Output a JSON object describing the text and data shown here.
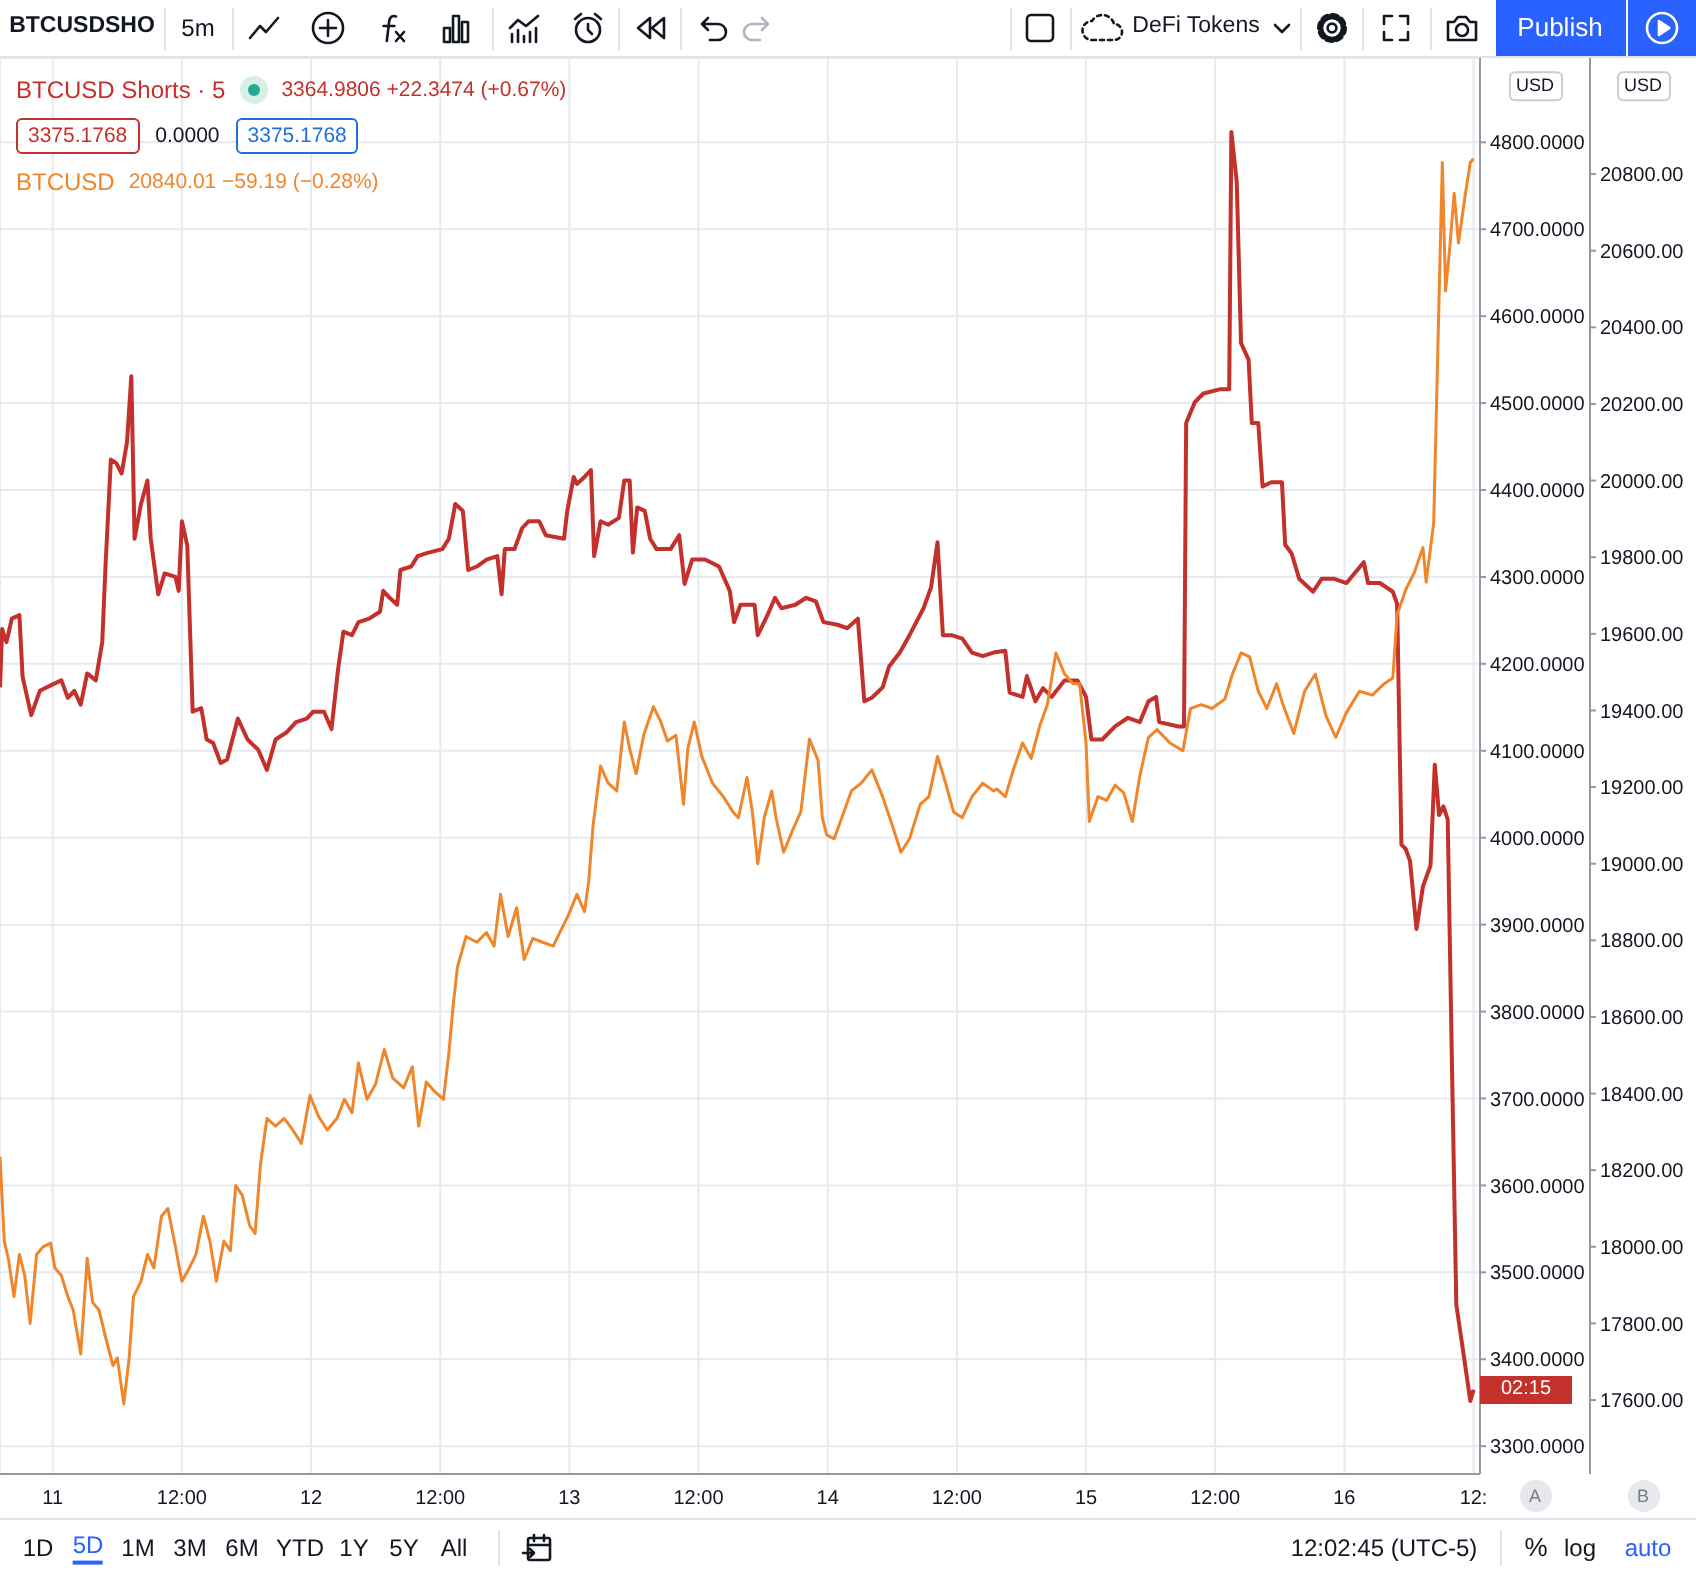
{
  "chart_data": {
    "type": "line",
    "xlim": [
      "2020-12-10T19:06",
      "2020-12-16T12:36"
    ],
    "xticks": [
      {
        "value": "2020-12-11T00:00",
        "label": "11"
      },
      {
        "value": "2020-12-11T12:00",
        "label": "12:00"
      },
      {
        "value": "2020-12-12T00:00",
        "label": "12"
      },
      {
        "value": "2020-12-12T12:00",
        "label": "12:00"
      },
      {
        "value": "2020-12-13T00:00",
        "label": "13"
      },
      {
        "value": "2020-12-13T12:00",
        "label": "12:00"
      },
      {
        "value": "2020-12-14T00:00",
        "label": "14"
      },
      {
        "value": "2020-12-14T12:00",
        "label": "12:00"
      },
      {
        "value": "2020-12-15T00:00",
        "label": "15"
      },
      {
        "value": "2020-12-15T12:00",
        "label": "12:00"
      },
      {
        "value": "2020-12-16T00:00",
        "label": "16"
      },
      {
        "value": "2020-12-16T12:00",
        "label": "12:"
      }
    ],
    "ylim": [
      3268,
      4897
    ],
    "yticks": [
      {
        "value": 3300,
        "label": "3300.0000"
      },
      {
        "value": 3400,
        "label": "3400.0000"
      },
      {
        "value": 3500,
        "label": "3500.0000"
      },
      {
        "value": 3600,
        "label": "3600.0000"
      },
      {
        "value": 3700,
        "label": "3700.0000"
      },
      {
        "value": 3800,
        "label": "3800.0000"
      },
      {
        "value": 3900,
        "label": "3900.0000"
      },
      {
        "value": 4000,
        "label": "4000.0000"
      },
      {
        "value": 4100,
        "label": "4100.0000"
      },
      {
        "value": 4200,
        "label": "4200.0000"
      },
      {
        "value": 4300,
        "label": "4300.0000"
      },
      {
        "value": 4400,
        "label": "4400.0000"
      },
      {
        "value": 4500,
        "label": "4500.0000"
      },
      {
        "value": 4600,
        "label": "4600.0000"
      },
      {
        "value": 4700,
        "label": "4700.0000"
      },
      {
        "value": 4800,
        "label": "4800.0000"
      }
    ],
    "y2lim": [
      17407,
      21103
    ],
    "y2ticks": [
      {
        "value": 17600,
        "label": "17600.00"
      },
      {
        "value": 17800,
        "label": "17800.00"
      },
      {
        "value": 18000,
        "label": "18000.00"
      },
      {
        "value": 18200,
        "label": "18200.00"
      },
      {
        "value": 18400,
        "label": "18400.00"
      },
      {
        "value": 18600,
        "label": "18600.00"
      },
      {
        "value": 18800,
        "label": "18800.00"
      },
      {
        "value": 19000,
        "label": "19000.00"
      },
      {
        "value": 19200,
        "label": "19200.00"
      },
      {
        "value": 19400,
        "label": "19400.00"
      },
      {
        "value": 19600,
        "label": "19600.00"
      },
      {
        "value": 19800,
        "label": "19800.00"
      },
      {
        "value": 20000,
        "label": "20000.00"
      },
      {
        "value": 20200,
        "label": "20200.00"
      },
      {
        "value": 20400,
        "label": "20400.00"
      },
      {
        "value": 20600,
        "label": "20600.00"
      },
      {
        "value": 20800,
        "label": "20800.00"
      }
    ],
    "grid": true,
    "legend": "top left",
    "series": [
      {
        "name": "BTCUSD Shorts · 5",
        "color": "#c4302b",
        "x": [
          "2020-12-10T19:06",
          "2020-12-10T19:18",
          "2020-12-10T19:42",
          "2020-12-10T20:12",
          "2020-12-10T20:54",
          "2020-12-10T21:12",
          "2020-12-10T22:00",
          "2020-12-10T22:48",
          "2020-12-11T00:06",
          "2020-12-11T00:48",
          "2020-12-11T01:24",
          "2020-12-11T02:00",
          "2020-12-11T02:36",
          "2020-12-11T03:12",
          "2020-12-11T04:00",
          "2020-12-11T04:36",
          "2020-12-11T04:54",
          "2020-12-11T05:24",
          "2020-12-11T05:54",
          "2020-12-11T06:24",
          "2020-12-11T06:54",
          "2020-12-11T07:18",
          "2020-12-11T07:36",
          "2020-12-11T08:12",
          "2020-12-11T08:48",
          "2020-12-11T09:06",
          "2020-12-11T09:48",
          "2020-12-11T10:24",
          "2020-12-11T11:24",
          "2020-12-11T11:42",
          "2020-12-11T12:00",
          "2020-12-11T12:30",
          "2020-12-11T13:00",
          "2020-12-11T13:48",
          "2020-12-11T14:18",
          "2020-12-11T14:54",
          "2020-12-11T15:36",
          "2020-12-11T16:12",
          "2020-12-11T17:12",
          "2020-12-11T18:06",
          "2020-12-11T19:06",
          "2020-12-11T19:54",
          "2020-12-11T20:42",
          "2020-12-11T21:42",
          "2020-12-11T22:36",
          "2020-12-11T23:36",
          "2020-12-12T00:12",
          "2020-12-12T01:12",
          "2020-12-12T01:54",
          "2020-12-12T02:30",
          "2020-12-12T03:00",
          "2020-12-12T03:48",
          "2020-12-12T04:24",
          "2020-12-12T05:24",
          "2020-12-12T06:24",
          "2020-12-12T06:42",
          "2020-12-12T07:18",
          "2020-12-12T08:00",
          "2020-12-12T08:18",
          "2020-12-12T09:18",
          "2020-12-12T09:54",
          "2020-12-12T10:54",
          "2020-12-12T12:12",
          "2020-12-12T12:48",
          "2020-12-12T13:24",
          "2020-12-12T14:06",
          "2020-12-12T14:36",
          "2020-12-12T15:24",
          "2020-12-12T16:18",
          "2020-12-12T17:18",
          "2020-12-12T17:42",
          "2020-12-12T18:00",
          "2020-12-12T18:54",
          "2020-12-12T19:36",
          "2020-12-12T20:12",
          "2020-12-12T21:12",
          "2020-12-12T21:48",
          "2020-12-12T23:30",
          "2020-12-12T23:48",
          "2020-12-13T00:24",
          "2020-12-13T00:42",
          "2020-12-13T01:24",
          "2020-12-13T02:00",
          "2020-12-13T02:18",
          "2020-12-13T02:54",
          "2020-12-13T03:36",
          "2020-12-13T04:36",
          "2020-12-13T05:06",
          "2020-12-13T05:36",
          "2020-12-13T05:54",
          "2020-12-13T06:18",
          "2020-12-13T07:00",
          "2020-12-13T07:30",
          "2020-12-13T08:06",
          "2020-12-13T09:24",
          "2020-12-13T10:12",
          "2020-12-13T10:42",
          "2020-12-13T11:24",
          "2020-12-13T12:36",
          "2020-12-13T13:54",
          "2020-12-13T14:54",
          "2020-12-13T15:18",
          "2020-12-13T15:54",
          "2020-12-13T17:12",
          "2020-12-13T17:30",
          "2020-12-13T18:24",
          "2020-12-13T19:06",
          "2020-12-13T19:42",
          "2020-12-13T21:00",
          "2020-12-13T22:00",
          "2020-12-13T22:54",
          "2020-12-13T23:36",
          "2020-12-14T00:54",
          "2020-12-14T01:48",
          "2020-12-14T02:48",
          "2020-12-14T03:24",
          "2020-12-14T04:06",
          "2020-12-14T05:06",
          "2020-12-14T05:42",
          "2020-12-14T06:42",
          "2020-12-14T07:36",
          "2020-12-14T08:54",
          "2020-12-14T09:36",
          "2020-12-14T10:12",
          "2020-12-14T10:42",
          "2020-12-14T11:30",
          "2020-12-14T12:30",
          "2020-12-14T13:24",
          "2020-12-14T14:24",
          "2020-12-14T15:24",
          "2020-12-14T16:30",
          "2020-12-14T16:54",
          "2020-12-14T18:06",
          "2020-12-14T18:30",
          "2020-12-14T19:18",
          "2020-12-14T20:00",
          "2020-12-14T20:48",
          "2020-12-14T22:00",
          "2020-12-14T23:12",
          "2020-12-15T00:00",
          "2020-12-15T00:30",
          "2020-12-15T01:30",
          "2020-12-15T02:42",
          "2020-12-15T03:54",
          "2020-12-15T05:00",
          "2020-12-15T05:48",
          "2020-12-15T06:30",
          "2020-12-15T06:48",
          "2020-12-15T08:36",
          "2020-12-15T09:06",
          "2020-12-15T09:18",
          "2020-12-15T10:06",
          "2020-12-15T10:54",
          "2020-12-15T12:30",
          "2020-12-15T13:18",
          "2020-12-15T13:30",
          "2020-12-15T14:00",
          "2020-12-15T14:24",
          "2020-12-15T15:06",
          "2020-12-15T15:24",
          "2020-12-15T16:00",
          "2020-12-15T16:24",
          "2020-12-15T17:12",
          "2020-12-15T18:12",
          "2020-12-15T18:30",
          "2020-12-15T19:06",
          "2020-12-15T19:48",
          "2020-12-15T21:06",
          "2020-12-15T21:54",
          "2020-12-15T23:00",
          "2020-12-16T00:12",
          "2020-12-16T01:48",
          "2020-12-16T02:12",
          "2020-12-16T03:18",
          "2020-12-16T04:30",
          "2020-12-16T04:54",
          "2020-12-16T05:18",
          "2020-12-16T05:42",
          "2020-12-16T06:06",
          "2020-12-16T06:42",
          "2020-12-16T07:18",
          "2020-12-16T08:00",
          "2020-12-16T08:24",
          "2020-12-16T08:48",
          "2020-12-16T09:12",
          "2020-12-16T09:36",
          "2020-12-16T10:00",
          "2020-12-16T10:24",
          "2020-12-16T11:12",
          "2020-12-16T11:42",
          "2020-12-16T12:00"
        ],
        "values": [
          4173,
          4240,
          4225,
          4252,
          4256,
          4185,
          4141,
          4169,
          4177,
          4181,
          4161,
          4169,
          4153,
          4189,
          4181,
          4225,
          4312,
          4435,
          4431,
          4419,
          4455,
          4531,
          4344,
          4384,
          4411,
          4344,
          4280,
          4304,
          4300,
          4284,
          4364,
          4336,
          4145,
          4149,
          4113,
          4109,
          4086,
          4090,
          4137,
          4113,
          4101,
          4078,
          4113,
          4121,
          4133,
          4137,
          4145,
          4145,
          4125,
          4193,
          4237,
          4233,
          4248,
          4252,
          4260,
          4284,
          4276,
          4268,
          4308,
          4312,
          4324,
          4328,
          4332,
          4344,
          4384,
          4376,
          4308,
          4312,
          4320,
          4324,
          4280,
          4332,
          4332,
          4356,
          4364,
          4364,
          4348,
          4344,
          4376,
          4415,
          4407,
          4415,
          4423,
          4324,
          4364,
          4360,
          4368,
          4411,
          4411,
          4328,
          4380,
          4376,
          4344,
          4332,
          4332,
          4348,
          4292,
          4320,
          4320,
          4312,
          4284,
          4248,
          4268,
          4268,
          4233,
          4256,
          4276,
          4264,
          4268,
          4276,
          4272,
          4248,
          4245,
          4241,
          4252,
          4157,
          4161,
          4173,
          4197,
          4213,
          4233,
          4264,
          4288,
          4340,
          4233,
          4233,
          4229,
          4213,
          4209,
          4213,
          4215,
          4167,
          4162,
          4186,
          4157,
          4172,
          4162,
          4181,
          4181,
          4162,
          4113,
          4113,
          4128,
          4138,
          4133,
          4157,
          4162,
          4133,
          4128,
          4128,
          4477,
          4501,
          4511,
          4516,
          4516,
          4812,
          4754,
          4569,
          4550,
          4477,
          4477,
          4404,
          4409,
          4409,
          4337,
          4327,
          4298,
          4283,
          4298,
          4298,
          4293,
          4317,
          4293,
          4293,
          4283,
          4269,
          3992,
          3987,
          3973,
          3895,
          3944,
          3968,
          4084,
          4026,
          4036,
          4021,
          3735,
          3463,
          3395,
          3352,
          3365
        ]
      },
      {
        "name": "BTCUSD",
        "color": "#f0862c",
        "axis": "y2",
        "x": [
          "2020-12-10T19:06",
          "2020-12-10T19:30",
          "2020-12-10T19:54",
          "2020-12-10T20:24",
          "2020-12-10T20:54",
          "2020-12-10T21:24",
          "2020-12-10T21:54",
          "2020-12-10T22:30",
          "2020-12-10T23:06",
          "2020-12-10T23:48",
          "2020-12-11T00:12",
          "2020-12-11T00:48",
          "2020-12-11T01:24",
          "2020-12-11T01:54",
          "2020-12-11T02:36",
          "2020-12-11T03:12",
          "2020-12-11T03:42",
          "2020-12-11T04:18",
          "2020-12-11T04:54",
          "2020-12-11T05:36",
          "2020-12-11T06:00",
          "2020-12-11T06:36",
          "2020-12-11T07:06",
          "2020-12-11T07:30",
          "2020-12-11T08:12",
          "2020-12-11T08:48",
          "2020-12-11T09:24",
          "2020-12-11T10:06",
          "2020-12-11T10:42",
          "2020-12-11T11:24",
          "2020-12-11T12:00",
          "2020-12-11T12:42",
          "2020-12-11T13:18",
          "2020-12-11T14:00",
          "2020-12-11T14:36",
          "2020-12-11T15:12",
          "2020-12-11T15:54",
          "2020-12-11T16:30",
          "2020-12-11T17:00",
          "2020-12-11T17:36",
          "2020-12-11T18:18",
          "2020-12-11T18:48",
          "2020-12-11T19:18",
          "2020-12-11T19:54",
          "2020-12-11T20:42",
          "2020-12-11T21:30",
          "2020-12-11T22:18",
          "2020-12-11T23:06",
          "2020-12-11T23:54",
          "2020-12-12T00:42",
          "2020-12-12T01:30",
          "2020-12-12T02:24",
          "2020-12-12T03:06",
          "2020-12-12T03:48",
          "2020-12-12T04:24",
          "2020-12-12T05:12",
          "2020-12-12T06:00",
          "2020-12-12T06:48",
          "2020-12-12T07:36",
          "2020-12-12T08:36",
          "2020-12-12T09:24",
          "2020-12-12T10:00",
          "2020-12-12T10:42",
          "2020-12-12T11:30",
          "2020-12-12T12:18",
          "2020-12-12T12:48",
          "2020-12-12T13:12",
          "2020-12-12T13:36",
          "2020-12-12T14:24",
          "2020-12-12T15:24",
          "2020-12-12T16:18",
          "2020-12-12T17:00",
          "2020-12-12T17:36",
          "2020-12-12T18:18",
          "2020-12-12T19:06",
          "2020-12-12T19:48",
          "2020-12-12T20:36",
          "2020-12-12T21:30",
          "2020-12-12T22:30",
          "2020-12-12T23:06",
          "2020-12-12T23:54",
          "2020-12-13T00:42",
          "2020-12-13T01:24",
          "2020-12-13T01:48",
          "2020-12-13T02:12",
          "2020-12-13T02:54",
          "2020-12-13T03:36",
          "2020-12-13T04:24",
          "2020-12-13T05:06",
          "2020-12-13T05:36",
          "2020-12-13T06:12",
          "2020-12-13T06:54",
          "2020-12-13T07:48",
          "2020-12-13T08:30",
          "2020-12-13T09:06",
          "2020-12-13T09:54",
          "2020-12-13T10:36",
          "2020-12-13T11:00",
          "2020-12-13T11:36",
          "2020-12-13T12:18",
          "2020-12-13T13:18",
          "2020-12-13T14:18",
          "2020-12-13T15:12",
          "2020-12-13T15:42",
          "2020-12-13T16:30",
          "2020-12-13T17:00",
          "2020-12-13T17:30",
          "2020-12-13T18:06",
          "2020-12-13T18:48",
          "2020-12-13T19:12",
          "2020-12-13T19:54",
          "2020-12-13T20:42",
          "2020-12-13T21:30",
          "2020-12-13T22:18",
          "2020-12-13T23:06",
          "2020-12-13T23:30",
          "2020-12-13T23:54",
          "2020-12-14T00:36",
          "2020-12-14T01:30",
          "2020-12-14T02:12",
          "2020-12-14T03:06",
          "2020-12-14T04:06",
          "2020-12-14T05:06",
          "2020-12-14T06:00",
          "2020-12-14T06:48",
          "2020-12-14T07:36",
          "2020-12-14T08:36",
          "2020-12-14T09:24",
          "2020-12-14T10:12",
          "2020-12-14T10:48",
          "2020-12-14T11:42",
          "2020-12-14T12:30",
          "2020-12-14T13:24",
          "2020-12-14T14:24",
          "2020-12-14T15:24",
          "2020-12-14T15:42",
          "2020-12-14T16:30",
          "2020-12-14T17:18",
          "2020-12-14T18:06",
          "2020-12-14T18:54",
          "2020-12-14T19:42",
          "2020-12-14T20:24",
          "2020-12-14T21:12",
          "2020-12-14T22:00",
          "2020-12-14T22:48",
          "2020-12-14T23:24",
          "2020-12-15T00:00",
          "2020-12-15T00:18",
          "2020-12-15T01:06",
          "2020-12-15T01:54",
          "2020-12-15T02:42",
          "2020-12-15T03:30",
          "2020-12-15T04:18",
          "2020-12-15T05:00",
          "2020-12-15T05:48",
          "2020-12-15T06:36",
          "2020-12-15T07:48",
          "2020-12-15T09:00",
          "2020-12-15T09:42",
          "2020-12-15T10:42",
          "2020-12-15T11:42",
          "2020-12-15T12:54",
          "2020-12-15T13:36",
          "2020-12-15T14:24",
          "2020-12-15T15:12",
          "2020-12-15T16:00",
          "2020-12-15T16:48",
          "2020-12-15T17:42",
          "2020-12-15T18:18",
          "2020-12-15T19:18",
          "2020-12-15T20:18",
          "2020-12-15T21:18",
          "2020-12-15T22:18",
          "2020-12-15T23:12",
          "2020-12-16T00:12",
          "2020-12-16T01:24",
          "2020-12-16T02:36",
          "2020-12-16T03:42",
          "2020-12-16T04:30",
          "2020-12-16T04:54",
          "2020-12-16T05:42",
          "2020-12-16T06:30",
          "2020-12-16T07:18",
          "2020-12-16T07:36",
          "2020-12-16T08:18",
          "2020-12-16T08:36",
          "2020-12-16T09:06",
          "2020-12-16T09:24",
          "2020-12-16T09:48",
          "2020-12-16T10:12",
          "2020-12-16T10:36",
          "2020-12-16T11:12",
          "2020-12-16T11:42",
          "2020-12-16T12:00"
        ],
        "values": [
          18235,
          18015,
          17965,
          17870,
          17980,
          17925,
          17800,
          17980,
          18000,
          18010,
          17945,
          17925,
          17870,
          17835,
          17720,
          17970,
          17855,
          17835,
          17765,
          17690,
          17710,
          17590,
          17710,
          17870,
          17910,
          17980,
          17945,
          18080,
          18100,
          18000,
          17910,
          17945,
          17980,
          18080,
          18015,
          17910,
          18015,
          17990,
          18160,
          18135,
          18055,
          18035,
          18215,
          18335,
          18315,
          18335,
          18305,
          18270,
          18395,
          18340,
          18305,
          18335,
          18385,
          18350,
          18480,
          18385,
          18425,
          18515,
          18440,
          18415,
          18470,
          18315,
          18430,
          18405,
          18385,
          18505,
          18630,
          18730,
          18810,
          18795,
          18820,
          18785,
          18920,
          18810,
          18885,
          18750,
          18805,
          18795,
          18785,
          18820,
          18865,
          18920,
          18875,
          18955,
          19100,
          19255,
          19210,
          19190,
          19370,
          19300,
          19235,
          19335,
          19410,
          19370,
          19320,
          19335,
          19155,
          19300,
          19370,
          19280,
          19210,
          19175,
          19135,
          19120,
          19225,
          19135,
          19000,
          19120,
          19190,
          19120,
          19030,
          19085,
          19135,
          19325,
          19270,
          19120,
          19075,
          19065,
          19135,
          19190,
          19210,
          19245,
          19175,
          19100,
          19030,
          19065,
          19155,
          19175,
          19280,
          19225,
          19135,
          19120,
          19175,
          19210,
          19190,
          19195,
          19175,
          19250,
          19315,
          19275,
          19360,
          19415,
          19550,
          19495,
          19470,
          19470,
          19315,
          19110,
          19175,
          19165,
          19205,
          19185,
          19110,
          19230,
          19330,
          19350,
          19315,
          19295,
          19405,
          19415,
          19405,
          19430,
          19495,
          19550,
          19540,
          19450,
          19405,
          19470,
          19415,
          19340,
          19450,
          19495,
          19385,
          19330,
          19395,
          19450,
          19440,
          19470,
          19485,
          19650,
          19715,
          19760,
          19825,
          19735,
          19890,
          20245,
          20830,
          20495,
          20610,
          20750,
          20620,
          20740,
          20830,
          20840
        ]
      }
    ],
    "annotations": [
      "BTCUSDSHO",
      "5m",
      "DeFi Tokens",
      "Publish",
      "3364.9806 +22.3474 (+0.67%)",
      "3375.1768",
      "0.0000",
      "3375.1768",
      "20840.01 −59.19 (−0.28%)",
      "USD",
      "USD",
      "02:15",
      "A",
      "B",
      "1D",
      "5D",
      "1M",
      "3M",
      "6M",
      "YTD",
      "1Y",
      "5Y",
      "All",
      "12:02:45 (UTC-5)",
      "%",
      "log",
      "auto"
    ]
  }
}
